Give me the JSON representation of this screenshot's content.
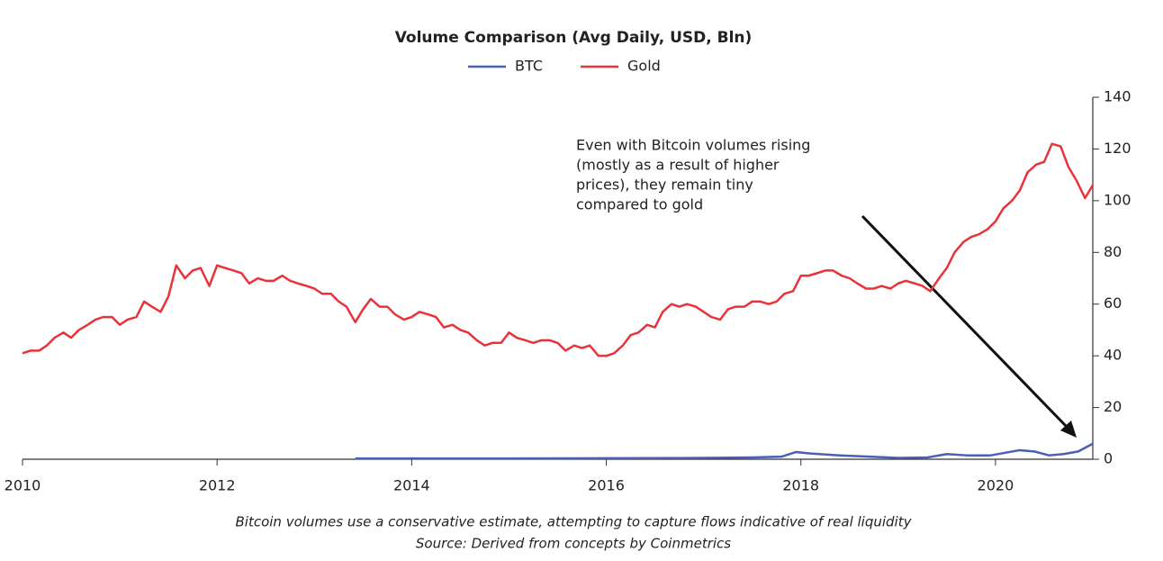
{
  "chart_data": {
    "type": "line",
    "title": "Volume Comparison (Avg Daily, USD, Bln)",
    "annotation": [
      "Even with Bitcoin volumes rising",
      "(mostly as a result of higher",
      "prices), they remain tiny",
      "compared to gold"
    ],
    "notes": [
      "Bitcoin volumes use a conservative estimate, attempting to capture flows indicative of real liquidity",
      "Source: Derived from concepts by Coinmetrics"
    ],
    "xlim": [
      2010,
      2021
    ],
    "xticks": [
      2010,
      2012,
      2014,
      2016,
      2018,
      2020
    ],
    "ylim": [
      0,
      140
    ],
    "yticks": [
      0,
      20,
      40,
      60,
      80,
      100,
      120,
      140
    ],
    "grid": false,
    "series": [
      {
        "name": "BTC",
        "color": "#4a5fb5",
        "x": [
          2013.42,
          2014,
          2015,
          2016,
          2017,
          2017.5,
          2017.8,
          2017.95,
          2018.1,
          2018.4,
          2018.7,
          2019.0,
          2019.3,
          2019.5,
          2019.7,
          2019.95,
          2020.1,
          2020.25,
          2020.4,
          2020.55,
          2020.7,
          2020.85,
          2021.0
        ],
        "values": [
          0.3,
          0.3,
          0.3,
          0.4,
          0.5,
          0.7,
          1,
          2.8,
          2.2,
          1.5,
          1,
          0.5,
          0.7,
          2,
          1.5,
          1.5,
          2.5,
          3.5,
          3,
          1.5,
          2,
          3,
          6
        ]
      },
      {
        "name": "Gold",
        "color": "#e8333a",
        "x": [
          2010.0,
          2010.08,
          2010.17,
          2010.25,
          2010.33,
          2010.42,
          2010.5,
          2010.58,
          2010.67,
          2010.75,
          2010.83,
          2010.92,
          2011.0,
          2011.08,
          2011.17,
          2011.25,
          2011.33,
          2011.42,
          2011.5,
          2011.58,
          2011.67,
          2011.75,
          2011.83,
          2011.92,
          2012.0,
          2012.08,
          2012.17,
          2012.25,
          2012.33,
          2012.42,
          2012.5,
          2012.58,
          2012.67,
          2012.75,
          2012.83,
          2012.92,
          2013.0,
          2013.08,
          2013.17,
          2013.25,
          2013.33,
          2013.42,
          2013.5,
          2013.58,
          2013.67,
          2013.75,
          2013.83,
          2013.92,
          2014.0,
          2014.08,
          2014.17,
          2014.25,
          2014.33,
          2014.42,
          2014.5,
          2014.58,
          2014.67,
          2014.75,
          2014.83,
          2014.92,
          2015.0,
          2015.08,
          2015.17,
          2015.25,
          2015.33,
          2015.42,
          2015.5,
          2015.58,
          2015.67,
          2015.75,
          2015.83,
          2015.92,
          2016.0,
          2016.08,
          2016.17,
          2016.25,
          2016.33,
          2016.42,
          2016.5,
          2016.58,
          2016.67,
          2016.75,
          2016.83,
          2016.92,
          2017.0,
          2017.08,
          2017.17,
          2017.25,
          2017.33,
          2017.42,
          2017.5,
          2017.58,
          2017.67,
          2017.75,
          2017.83,
          2017.92,
          2018.0,
          2018.08,
          2018.17,
          2018.25,
          2018.33,
          2018.42,
          2018.5,
          2018.58,
          2018.67,
          2018.75,
          2018.83,
          2018.92,
          2019.0,
          2019.08,
          2019.17,
          2019.25,
          2019.33,
          2019.42,
          2019.5,
          2019.58,
          2019.67,
          2019.75,
          2019.83,
          2019.92,
          2020.0,
          2020.08,
          2020.17,
          2020.25,
          2020.33,
          2020.42,
          2020.5,
          2020.58,
          2020.67,
          2020.75,
          2020.83,
          2020.92,
          2021.0
        ],
        "values": [
          41,
          42,
          42,
          44,
          47,
          49,
          47,
          50,
          52,
          54,
          55,
          55,
          52,
          54,
          55,
          61,
          59,
          57,
          63,
          75,
          70,
          73,
          74,
          67,
          75,
          74,
          73,
          72,
          68,
          70,
          69,
          69,
          71,
          69,
          68,
          67,
          66,
          64,
          64,
          61,
          59,
          53,
          58,
          62,
          59,
          59,
          56,
          54,
          55,
          57,
          56,
          55,
          51,
          52,
          50,
          49,
          46,
          44,
          45,
          45,
          49,
          47,
          46,
          45,
          46,
          46,
          45,
          42,
          44,
          43,
          44,
          40,
          40,
          41,
          44,
          48,
          49,
          52,
          51,
          57,
          60,
          59,
          60,
          59,
          57,
          55,
          54,
          58,
          59,
          59,
          61,
          61,
          60,
          61,
          64,
          65,
          71,
          71,
          72,
          73,
          73,
          71,
          70,
          68,
          66,
          66,
          67,
          66,
          68,
          69,
          68,
          67,
          65,
          70,
          74,
          80,
          84,
          86,
          87,
          89,
          92,
          97,
          100,
          104,
          111,
          114,
          115,
          122,
          121,
          113,
          108,
          101,
          106
        ]
      }
    ]
  }
}
